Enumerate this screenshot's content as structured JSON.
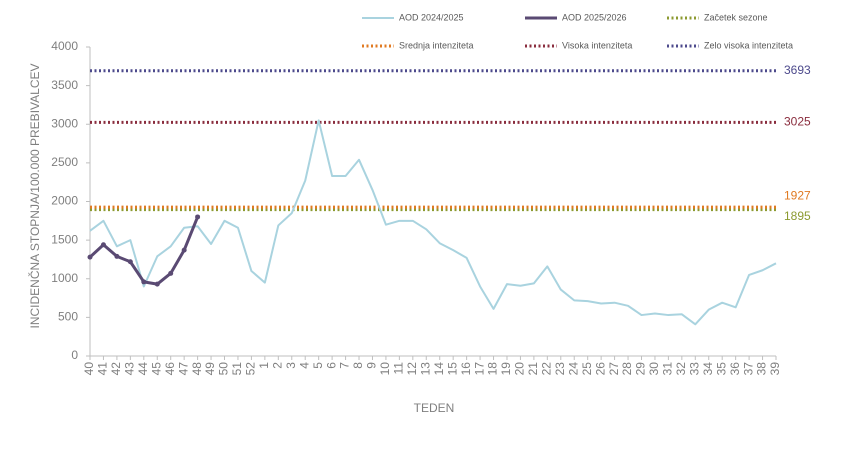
{
  "chart_data": {
    "type": "line",
    "y_label": "INCIDENČNA  STOPNJA/100.000  PREBIVALCEV",
    "x_label": "TEDEN",
    "categories": [
      "40",
      "41",
      "42",
      "43",
      "44",
      "45",
      "46",
      "47",
      "48",
      "49",
      "50",
      "51",
      "52",
      "1",
      "2",
      "3",
      "4",
      "5",
      "6",
      "7",
      "8",
      "9",
      "10",
      "11",
      "12",
      "13",
      "14",
      "15",
      "16",
      "17",
      "18",
      "19",
      "20",
      "21",
      "22",
      "23",
      "24",
      "25",
      "26",
      "27",
      "28",
      "29",
      "30",
      "31",
      "32",
      "33",
      "34",
      "35",
      "36",
      "37",
      "38",
      "39"
    ],
    "series": [
      {
        "name": "AOD 2024/2025",
        "color": "#a9d3df",
        "values": [
          1620,
          1750,
          1420,
          1500,
          900,
          1290,
          1420,
          1660,
          1680,
          1450,
          1750,
          1660,
          1100,
          950,
          1690,
          1850,
          2270,
          3050,
          2330,
          2330,
          2540,
          2150,
          1700,
          1750,
          1750,
          1640,
          1460,
          1370,
          1270,
          900,
          610,
          930,
          910,
          940,
          1160,
          860,
          720,
          710,
          680,
          690,
          650,
          530,
          550,
          530,
          540,
          410,
          600,
          690,
          630,
          1050,
          1110,
          1200
        ]
      },
      {
        "name": "AOD 2025/2026",
        "color": "#5a4a73",
        "values": [
          1280,
          1440,
          1290,
          1220,
          960,
          930,
          1070,
          1370,
          1800,
          null,
          null,
          null,
          null,
          null,
          null,
          null,
          null,
          null,
          null,
          null,
          null,
          null,
          null,
          null,
          null,
          null,
          null,
          null,
          null,
          null,
          null,
          null,
          null,
          null,
          null,
          null,
          null,
          null,
          null,
          null,
          null,
          null,
          null,
          null,
          null,
          null,
          null,
          null,
          null,
          null,
          null,
          null
        ]
      }
    ],
    "reference_lines": [
      {
        "name": "Začetek sezone",
        "value": 1895,
        "color": "#8c9a30"
      },
      {
        "name": "Srednja intenziteta",
        "value": 1927,
        "color": "#e07a22"
      },
      {
        "name": "Visoka intenziteta",
        "value": 3025,
        "color": "#8a2d3e"
      },
      {
        "name": "Zelo visoka intenziteta",
        "value": 3693,
        "color": "#4d4a8c"
      }
    ],
    "ylim": [
      0,
      4000
    ],
    "yticks": [
      0,
      500,
      1000,
      1500,
      2000,
      2500,
      3000,
      3500,
      4000
    ]
  }
}
